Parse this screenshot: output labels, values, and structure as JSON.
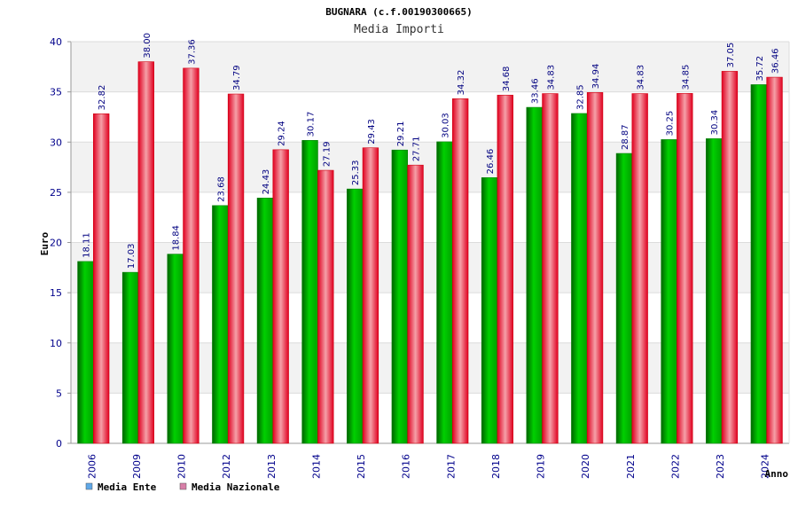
{
  "chart_data": {
    "type": "bar",
    "title": "BUGNARA (c.f.00190300665)",
    "subtitle": "Media Importi",
    "xlabel": "Anno",
    "ylabel": "Euro",
    "ylim": [
      0,
      40
    ],
    "yticks": [
      0,
      5,
      10,
      15,
      20,
      25,
      30,
      35,
      40
    ],
    "grid": true,
    "legend_position": "bottom-left",
    "categories": [
      "2006",
      "2009",
      "2010",
      "2012",
      "2013",
      "2014",
      "2015",
      "2016",
      "2017",
      "2018",
      "2019",
      "2020",
      "2021",
      "2022",
      "2023",
      "2024"
    ],
    "series": [
      {
        "name": "Media Ente",
        "color": "#00c000",
        "legend_color": "#5fa8e8",
        "values": [
          18.11,
          17.03,
          18.84,
          23.68,
          24.43,
          30.17,
          25.33,
          29.21,
          30.03,
          26.46,
          33.46,
          32.85,
          28.87,
          30.25,
          30.34,
          35.72
        ],
        "labels": [
          "18.11",
          "17.03",
          "18.84",
          "23.68",
          "24.43",
          "30.17",
          "25.33",
          "29.21",
          "30.03",
          "26.46",
          "33.46",
          "32.85",
          "28.87",
          "30.25",
          "30.34",
          "35.72"
        ]
      },
      {
        "name": "Media Nazionale",
        "color": "#e8001c",
        "legend_color": "#d87fa8",
        "values": [
          32.82,
          38.0,
          37.36,
          34.79,
          29.24,
          27.19,
          29.43,
          27.71,
          34.32,
          34.68,
          34.83,
          34.94,
          34.83,
          34.85,
          37.05,
          36.46
        ],
        "labels": [
          "32.82",
          "38.00",
          "37.36",
          "34.79",
          "29.24",
          "27.19",
          "29.43",
          "27.71",
          "34.32",
          "34.68",
          "34.83",
          "34.94",
          "34.83",
          "34.85",
          "37.05",
          "36.46"
        ]
      }
    ]
  }
}
